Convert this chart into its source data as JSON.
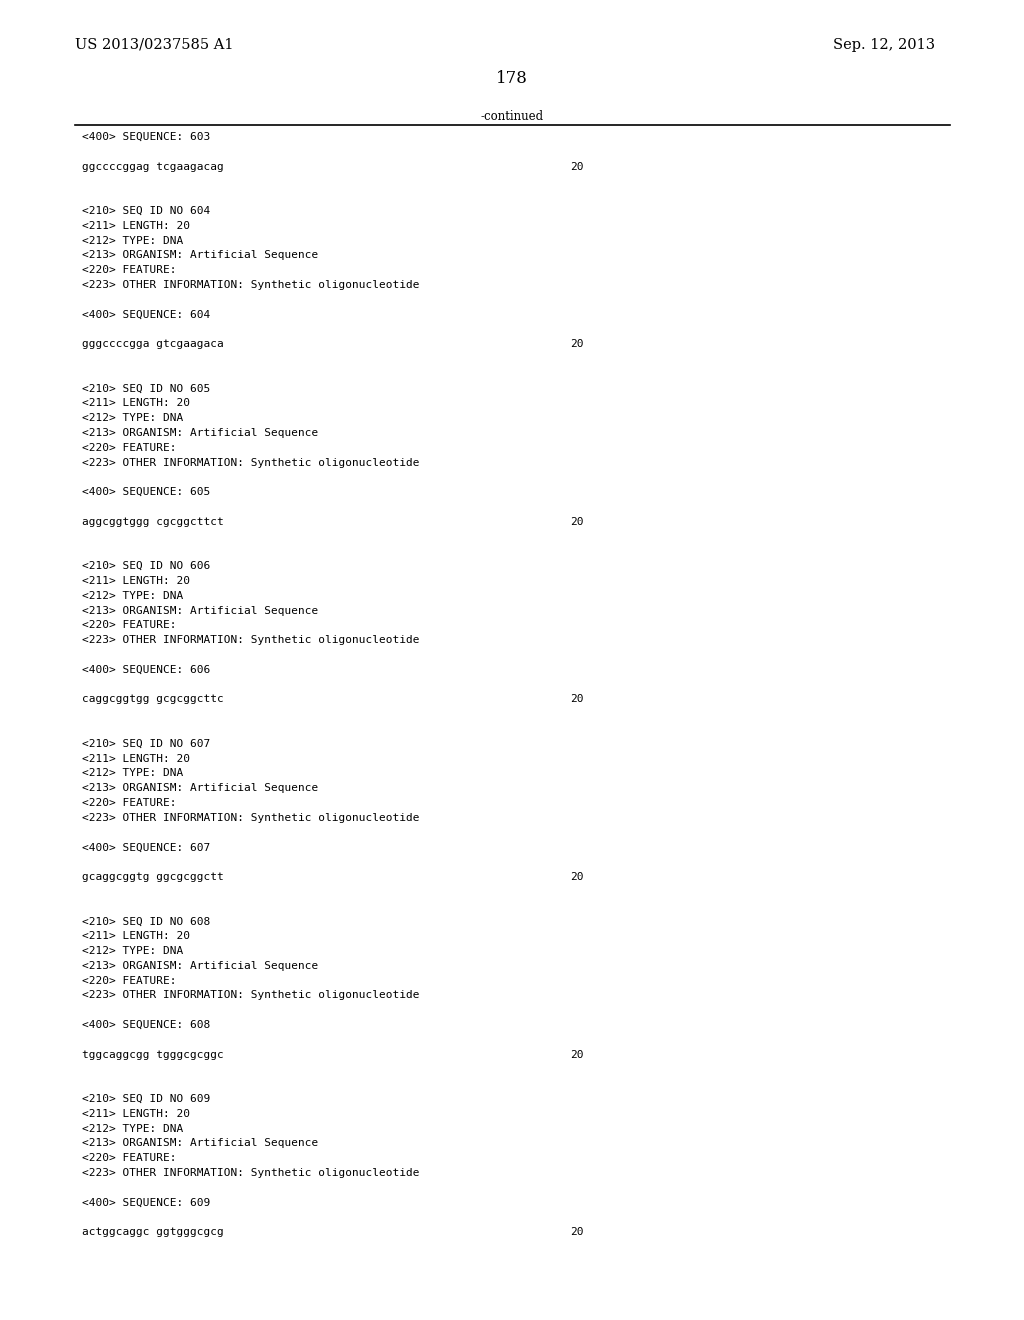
{
  "header_left": "US 2013/0237585 A1",
  "header_right": "Sep. 12, 2013",
  "page_number": "178",
  "continued_text": "-continued",
  "background_color": "#ffffff",
  "text_color": "#000000",
  "font_size_header": 10.5,
  "font_size_body": 8.0,
  "font_size_page": 12,
  "font_size_continued": 8.5,
  "content_lines": [
    {
      "type": "seq400",
      "text": "<400> SEQUENCE: 603"
    },
    {
      "type": "spacer",
      "size": 1.0
    },
    {
      "type": "seq_data",
      "left": "ggccccggag tcgaagacag",
      "right": "20"
    },
    {
      "type": "spacer",
      "size": 2.0
    },
    {
      "type": "seq210",
      "text": "<210> SEQ ID NO 604"
    },
    {
      "type": "seq_meta",
      "text": "<211> LENGTH: 20"
    },
    {
      "type": "seq_meta",
      "text": "<212> TYPE: DNA"
    },
    {
      "type": "seq_meta",
      "text": "<213> ORGANISM: Artificial Sequence"
    },
    {
      "type": "seq_meta",
      "text": "<220> FEATURE:"
    },
    {
      "type": "seq_meta",
      "text": "<223> OTHER INFORMATION: Synthetic oligonucleotide"
    },
    {
      "type": "spacer",
      "size": 1.0
    },
    {
      "type": "seq400",
      "text": "<400> SEQUENCE: 604"
    },
    {
      "type": "spacer",
      "size": 1.0
    },
    {
      "type": "seq_data",
      "left": "gggccccgga gtcgaagaca",
      "right": "20"
    },
    {
      "type": "spacer",
      "size": 2.0
    },
    {
      "type": "seq210",
      "text": "<210> SEQ ID NO 605"
    },
    {
      "type": "seq_meta",
      "text": "<211> LENGTH: 20"
    },
    {
      "type": "seq_meta",
      "text": "<212> TYPE: DNA"
    },
    {
      "type": "seq_meta",
      "text": "<213> ORGANISM: Artificial Sequence"
    },
    {
      "type": "seq_meta",
      "text": "<220> FEATURE:"
    },
    {
      "type": "seq_meta",
      "text": "<223> OTHER INFORMATION: Synthetic oligonucleotide"
    },
    {
      "type": "spacer",
      "size": 1.0
    },
    {
      "type": "seq400",
      "text": "<400> SEQUENCE: 605"
    },
    {
      "type": "spacer",
      "size": 1.0
    },
    {
      "type": "seq_data",
      "left": "aggcggtggg cgcggcttct",
      "right": "20"
    },
    {
      "type": "spacer",
      "size": 2.0
    },
    {
      "type": "seq210",
      "text": "<210> SEQ ID NO 606"
    },
    {
      "type": "seq_meta",
      "text": "<211> LENGTH: 20"
    },
    {
      "type": "seq_meta",
      "text": "<212> TYPE: DNA"
    },
    {
      "type": "seq_meta",
      "text": "<213> ORGANISM: Artificial Sequence"
    },
    {
      "type": "seq_meta",
      "text": "<220> FEATURE:"
    },
    {
      "type": "seq_meta",
      "text": "<223> OTHER INFORMATION: Synthetic oligonucleotide"
    },
    {
      "type": "spacer",
      "size": 1.0
    },
    {
      "type": "seq400",
      "text": "<400> SEQUENCE: 606"
    },
    {
      "type": "spacer",
      "size": 1.0
    },
    {
      "type": "seq_data",
      "left": "caggcggtgg gcgcggcttc",
      "right": "20"
    },
    {
      "type": "spacer",
      "size": 2.0
    },
    {
      "type": "seq210",
      "text": "<210> SEQ ID NO 607"
    },
    {
      "type": "seq_meta",
      "text": "<211> LENGTH: 20"
    },
    {
      "type": "seq_meta",
      "text": "<212> TYPE: DNA"
    },
    {
      "type": "seq_meta",
      "text": "<213> ORGANISM: Artificial Sequence"
    },
    {
      "type": "seq_meta",
      "text": "<220> FEATURE:"
    },
    {
      "type": "seq_meta",
      "text": "<223> OTHER INFORMATION: Synthetic oligonucleotide"
    },
    {
      "type": "spacer",
      "size": 1.0
    },
    {
      "type": "seq400",
      "text": "<400> SEQUENCE: 607"
    },
    {
      "type": "spacer",
      "size": 1.0
    },
    {
      "type": "seq_data",
      "left": "gcaggcggtg ggcgcggctt",
      "right": "20"
    },
    {
      "type": "spacer",
      "size": 2.0
    },
    {
      "type": "seq210",
      "text": "<210> SEQ ID NO 608"
    },
    {
      "type": "seq_meta",
      "text": "<211> LENGTH: 20"
    },
    {
      "type": "seq_meta",
      "text": "<212> TYPE: DNA"
    },
    {
      "type": "seq_meta",
      "text": "<213> ORGANISM: Artificial Sequence"
    },
    {
      "type": "seq_meta",
      "text": "<220> FEATURE:"
    },
    {
      "type": "seq_meta",
      "text": "<223> OTHER INFORMATION: Synthetic oligonucleotide"
    },
    {
      "type": "spacer",
      "size": 1.0
    },
    {
      "type": "seq400",
      "text": "<400> SEQUENCE: 608"
    },
    {
      "type": "spacer",
      "size": 1.0
    },
    {
      "type": "seq_data",
      "left": "tggcaggcgg tgggcgcggc",
      "right": "20"
    },
    {
      "type": "spacer",
      "size": 2.0
    },
    {
      "type": "seq210",
      "text": "<210> SEQ ID NO 609"
    },
    {
      "type": "seq_meta",
      "text": "<211> LENGTH: 20"
    },
    {
      "type": "seq_meta",
      "text": "<212> TYPE: DNA"
    },
    {
      "type": "seq_meta",
      "text": "<213> ORGANISM: Artificial Sequence"
    },
    {
      "type": "seq_meta",
      "text": "<220> FEATURE:"
    },
    {
      "type": "seq_meta",
      "text": "<223> OTHER INFORMATION: Synthetic oligonucleotide"
    },
    {
      "type": "spacer",
      "size": 1.0
    },
    {
      "type": "seq400",
      "text": "<400> SEQUENCE: 609"
    },
    {
      "type": "spacer",
      "size": 1.0
    },
    {
      "type": "seq_data",
      "left": "actggcaggc ggtgggcgcg",
      "right": "20"
    }
  ]
}
